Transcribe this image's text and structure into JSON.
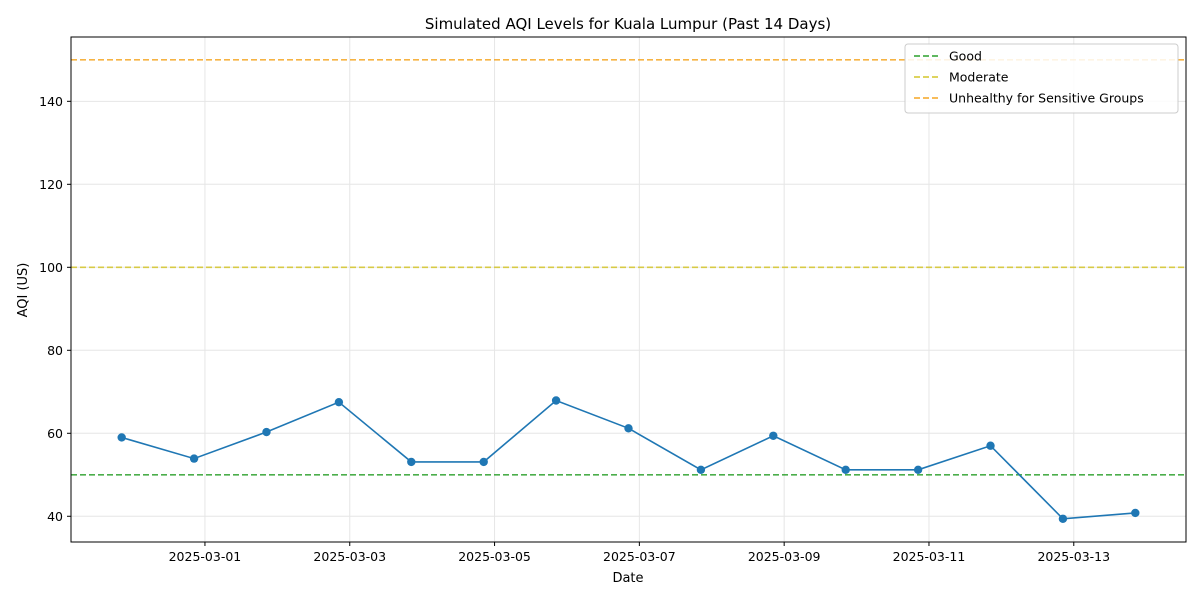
{
  "chart_data": {
    "type": "line",
    "title": "Simulated AQI Levels for Kuala Lumpur (Past 14 Days)",
    "xlabel": "Date",
    "ylabel": "AQI (US)",
    "x": [
      "2025-02-28",
      "2025-03-01",
      "2025-03-02",
      "2025-03-03",
      "2025-03-04",
      "2025-03-05",
      "2025-03-06",
      "2025-03-07",
      "2025-03-08",
      "2025-03-09",
      "2025-03-10",
      "2025-03-11",
      "2025-03-12",
      "2025-03-13",
      "2025-03-14"
    ],
    "series": [
      {
        "color": "#1f77b4",
        "values": [
          59.0,
          53.9,
          60.3,
          67.5,
          53.1,
          53.1,
          67.9,
          61.2,
          51.2,
          59.4,
          51.2,
          51.2,
          57.0,
          39.4,
          40.8
        ]
      }
    ],
    "x_offset_days": -0.15,
    "ylim": [
      33.8,
      155.5
    ],
    "yticks": [
      40,
      60,
      80,
      100,
      120,
      140
    ],
    "xticks": [
      "2025-03-01",
      "2025-03-03",
      "2025-03-05",
      "2025-03-07",
      "2025-03-09",
      "2025-03-11",
      "2025-03-13"
    ],
    "thresholds": [
      {
        "name": "Good",
        "value": 50,
        "color": "#2ca02c"
      },
      {
        "name": "Moderate",
        "value": 100,
        "color": "#d4c52a"
      },
      {
        "name": "Unhealthy for Sensitive Groups",
        "value": 150,
        "color": "#f5a623"
      }
    ],
    "legend": "top-right",
    "grid": true
  }
}
